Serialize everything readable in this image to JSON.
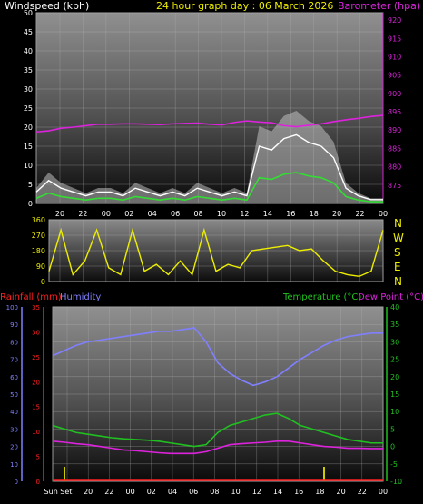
{
  "header": {
    "left": "Windspeed (kph)",
    "center": "24 hour graph day : 06 March 2026",
    "right": "Barometer (hpa)"
  },
  "bottom_header": {
    "rain": "Rainfall (mm)",
    "humidity": "Humidity",
    "temperature": "Temperature (°C)",
    "dewpoint": "Dew Point (°C)"
  },
  "x_labels": [
    "20",
    "22",
    "00",
    "02",
    "04",
    "06",
    "08",
    "10",
    "12",
    "14",
    "16",
    "18",
    "20",
    "22",
    "00"
  ],
  "bottom_x_labels": [
    "Sun Set",
    "20",
    "22",
    "00",
    "02",
    "04",
    "06",
    "08",
    "10",
    "12",
    "14",
    "16",
    "18",
    "20",
    "22",
    "00"
  ],
  "colors": {
    "windspeed": "#ffffff",
    "gust": "#bfbfbf",
    "wind_avg": "#33dd33",
    "barometer": "#dd22dd",
    "direction": "#eeee00",
    "humidity": "#8080ff",
    "temperature": "#20c020",
    "dewpoint": "#dd22dd",
    "rain": "#ff2020",
    "sun_marker": "#cccc00"
  },
  "chart_data": [
    {
      "type": "line",
      "title": "24 hour graph day : 06 March 2026",
      "ylabel": "Windspeed (kph)",
      "y2label": "Barometer (hpa)",
      "ylim": [
        0,
        50
      ],
      "y2lim": [
        870,
        922
      ],
      "yticks": [
        0,
        5,
        10,
        15,
        20,
        25,
        30,
        35,
        40,
        45,
        50
      ],
      "y2ticks": [
        875,
        880,
        885,
        890,
        895,
        900,
        905,
        910,
        915,
        920
      ],
      "x": [
        0,
        1,
        2,
        3,
        4,
        5,
        6,
        7,
        8,
        9,
        10,
        11,
        12,
        13,
        14,
        15,
        16,
        17,
        18,
        19,
        20,
        21,
        22,
        23,
        24,
        25,
        26,
        27,
        28
      ],
      "series": [
        {
          "name": "Windspeed (kph)",
          "values": [
            3,
            6,
            4,
            3,
            2,
            3,
            3,
            2,
            4,
            3,
            2,
            3,
            2,
            4,
            3,
            2,
            3,
            2,
            15,
            14,
            17,
            18,
            16,
            15,
            12,
            4,
            2,
            1,
            1
          ]
        },
        {
          "name": "Barometer (hpa)",
          "values": [
            889.5,
            889.8,
            890.5,
            890.8,
            891.2,
            891.6,
            891.6,
            891.7,
            891.7,
            891.6,
            891.5,
            891.7,
            891.8,
            891.9,
            891.6,
            891.4,
            892.1,
            892.5,
            892.2,
            892.0,
            891.2,
            890.9,
            891.3,
            891.7,
            892.3,
            892.8,
            893.2,
            893.7,
            894.0
          ]
        }
      ]
    },
    {
      "type": "line",
      "ylabel": "Wind direction",
      "ylim": [
        0,
        360
      ],
      "yticks": [
        0,
        90,
        180,
        270,
        360
      ],
      "compass": [
        "N",
        "W",
        "S",
        "E",
        "N"
      ],
      "x": [
        0,
        1,
        2,
        3,
        4,
        5,
        6,
        7,
        8,
        9,
        10,
        11,
        12,
        13,
        14,
        15,
        16,
        17,
        18,
        19,
        20,
        21,
        22,
        23,
        24,
        25,
        26,
        27,
        28
      ],
      "series": [
        {
          "name": "Wind direction",
          "values": [
            60,
            300,
            40,
            120,
            300,
            80,
            40,
            300,
            60,
            100,
            40,
            120,
            40,
            300,
            60,
            100,
            80,
            180,
            190,
            200,
            210,
            180,
            190,
            120,
            60,
            40,
            30,
            60,
            300
          ]
        }
      ]
    },
    {
      "type": "line",
      "ylabel": "Temperature (°C)",
      "ylim": [
        -10,
        40
      ],
      "yticks": [
        -10,
        -5,
        0,
        5,
        10,
        15,
        20,
        25,
        30,
        35,
        40
      ],
      "humidity_lim": [
        0,
        100
      ],
      "humidity_ticks": [
        0,
        10,
        20,
        30,
        40,
        50,
        60,
        70,
        80,
        90,
        100
      ],
      "rain_lim": [
        0,
        35
      ],
      "rain_ticks": [
        0,
        5,
        10,
        15,
        20,
        25,
        30,
        35
      ],
      "x": [
        0,
        1,
        2,
        3,
        4,
        5,
        6,
        7,
        8,
        9,
        10,
        11,
        12,
        13,
        14,
        15,
        16,
        17,
        18,
        19,
        20,
        21,
        22,
        23,
        24,
        25,
        26,
        27,
        28
      ],
      "series": [
        {
          "name": "Humidity",
          "values": [
            72,
            75,
            78,
            80,
            81,
            82,
            83,
            84,
            85,
            86,
            86,
            87,
            88,
            80,
            68,
            62,
            58,
            55,
            57,
            60,
            65,
            70,
            74,
            78,
            81,
            83,
            84,
            85,
            85
          ]
        },
        {
          "name": "Temperature (°C)",
          "values": [
            6,
            5,
            4,
            3.5,
            3,
            2.5,
            2.2,
            2,
            1.8,
            1.5,
            1,
            0.5,
            0,
            0.5,
            4,
            6,
            7,
            8,
            9,
            9.5,
            8,
            6,
            5,
            4,
            3,
            2,
            1.5,
            1,
            1
          ]
        },
        {
          "name": "Dew Point (°C)",
          "values": [
            1.5,
            1.2,
            0.8,
            0.5,
            0,
            -0.5,
            -1,
            -1.2,
            -1.5,
            -1.8,
            -2,
            -2,
            -2,
            -1.5,
            -0.5,
            0.5,
            0.8,
            1,
            1.2,
            1.5,
            1.5,
            1,
            0.5,
            0,
            -0.2,
            -0.5,
            -0.5,
            -0.6,
            -0.6
          ]
        },
        {
          "name": "Rainfall (mm)",
          "values": [
            0,
            0,
            0,
            0,
            0,
            0,
            0,
            0,
            0,
            0,
            0,
            0,
            0,
            0,
            0,
            0,
            0,
            0,
            0,
            0,
            0,
            0,
            0,
            0,
            0,
            0,
            0,
            0,
            0
          ]
        }
      ]
    }
  ]
}
